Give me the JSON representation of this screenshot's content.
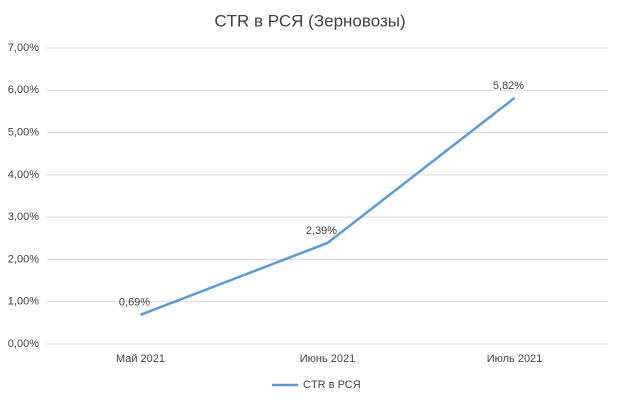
{
  "chart_data": {
    "type": "line",
    "title": "CTR в РСЯ (Зерновозы)",
    "categories": [
      "Май 2021",
      "Июнь 2021",
      "Июль 2021"
    ],
    "series": [
      {
        "name": "CTR в РСЯ",
        "color": "#5b9bd5",
        "values": [
          0.69,
          2.39,
          5.82
        ],
        "value_labels": [
          "0,69%",
          "2,39%",
          "5,82%"
        ]
      }
    ],
    "ylim": [
      0,
      7
    ],
    "yticks": [
      {
        "value": 0,
        "label": "0,00%"
      },
      {
        "value": 1,
        "label": "1,00%"
      },
      {
        "value": 2,
        "label": "2,00%"
      },
      {
        "value": 3,
        "label": "3,00%"
      },
      {
        "value": 4,
        "label": "4,00%"
      },
      {
        "value": 5,
        "label": "5,00%"
      },
      {
        "value": 6,
        "label": "6,00%"
      },
      {
        "value": 7,
        "label": "7,00%"
      }
    ],
    "grid": true,
    "legend": "bottom"
  }
}
